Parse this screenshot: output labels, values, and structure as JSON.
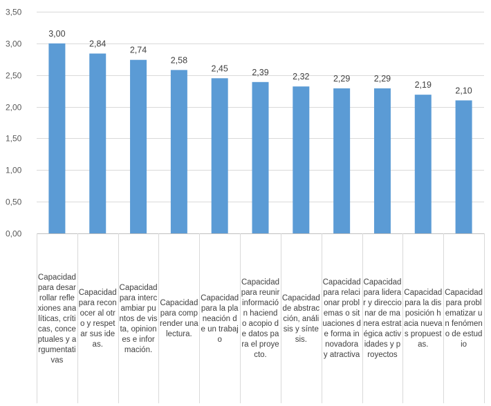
{
  "chart_data": {
    "type": "bar",
    "title": "",
    "xlabel": "",
    "ylabel": "",
    "ylim": [
      0,
      3.5
    ],
    "yticks": [
      "0,00",
      "0,50",
      "1,00",
      "1,50",
      "2,00",
      "2,50",
      "3,00",
      "3,50"
    ],
    "grid": true,
    "bar_color": "#5b9bd5",
    "categories": [
      "Capacidad para desarrollar reflexiones analíticas, críticas, conceptuales y argumentativas",
      "Capacidad para reconocer al otro y respetar sus ideas.",
      "Capacidad para intercambiar puntos de vista, opiniones e información.",
      "Capacidad para comprender una lectura.",
      "Capacidad para la planeación de un trabajo",
      "Capacidad para reunir información haciendo acopio de datos para el proyecto.",
      "Capacidad de abstracción, análisis y síntesis.",
      "Capacidad para relacionar problemas o situaciones de forma innovadora y atractiva",
      "Capacidad para liderar y direccionar de manera estratégica actividades y proyectos",
      "Capacidad para la disposición hacia nuevas propuestas.",
      "Capacidad para problematizar un fenómeno de estudio"
    ],
    "values": [
      3.0,
      2.84,
      2.74,
      2.58,
      2.45,
      2.39,
      2.32,
      2.29,
      2.29,
      2.19,
      2.1
    ],
    "data_labels": [
      "3,00",
      "2,84",
      "2,74",
      "2,58",
      "2,45",
      "2,39",
      "2,32",
      "2,29",
      "2,29",
      "2,19",
      "2,10"
    ]
  }
}
